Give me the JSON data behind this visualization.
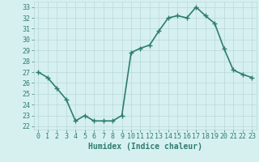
{
  "x": [
    0,
    1,
    2,
    3,
    4,
    5,
    6,
    7,
    8,
    9,
    10,
    11,
    12,
    13,
    14,
    15,
    16,
    17,
    18,
    19,
    20,
    21,
    22,
    23
  ],
  "y": [
    27.0,
    26.5,
    25.5,
    24.5,
    22.5,
    23.0,
    22.5,
    22.5,
    22.5,
    23.0,
    28.8,
    29.2,
    29.5,
    30.8,
    32.0,
    32.2,
    32.0,
    33.0,
    32.2,
    31.5,
    29.2,
    27.2,
    26.8,
    26.5
  ],
  "line_color": "#2e7d6e",
  "marker": "+",
  "marker_size": 4,
  "bg_color": "#d6f0f0",
  "grid_color": "#b8d8d8",
  "xlabel": "Humidex (Indice chaleur)",
  "ylim": [
    21.7,
    33.5
  ],
  "xlim": [
    -0.5,
    23.5
  ],
  "yticks": [
    22,
    23,
    24,
    25,
    26,
    27,
    28,
    29,
    30,
    31,
    32,
    33
  ],
  "xticks": [
    0,
    1,
    2,
    3,
    4,
    5,
    6,
    7,
    8,
    9,
    10,
    11,
    12,
    13,
    14,
    15,
    16,
    17,
    18,
    19,
    20,
    21,
    22,
    23
  ],
  "label_color": "#2e7d6e",
  "tick_color": "#2e7d6e",
  "xlabel_fontsize": 7,
  "tick_fontsize": 6,
  "line_width": 1.2
}
